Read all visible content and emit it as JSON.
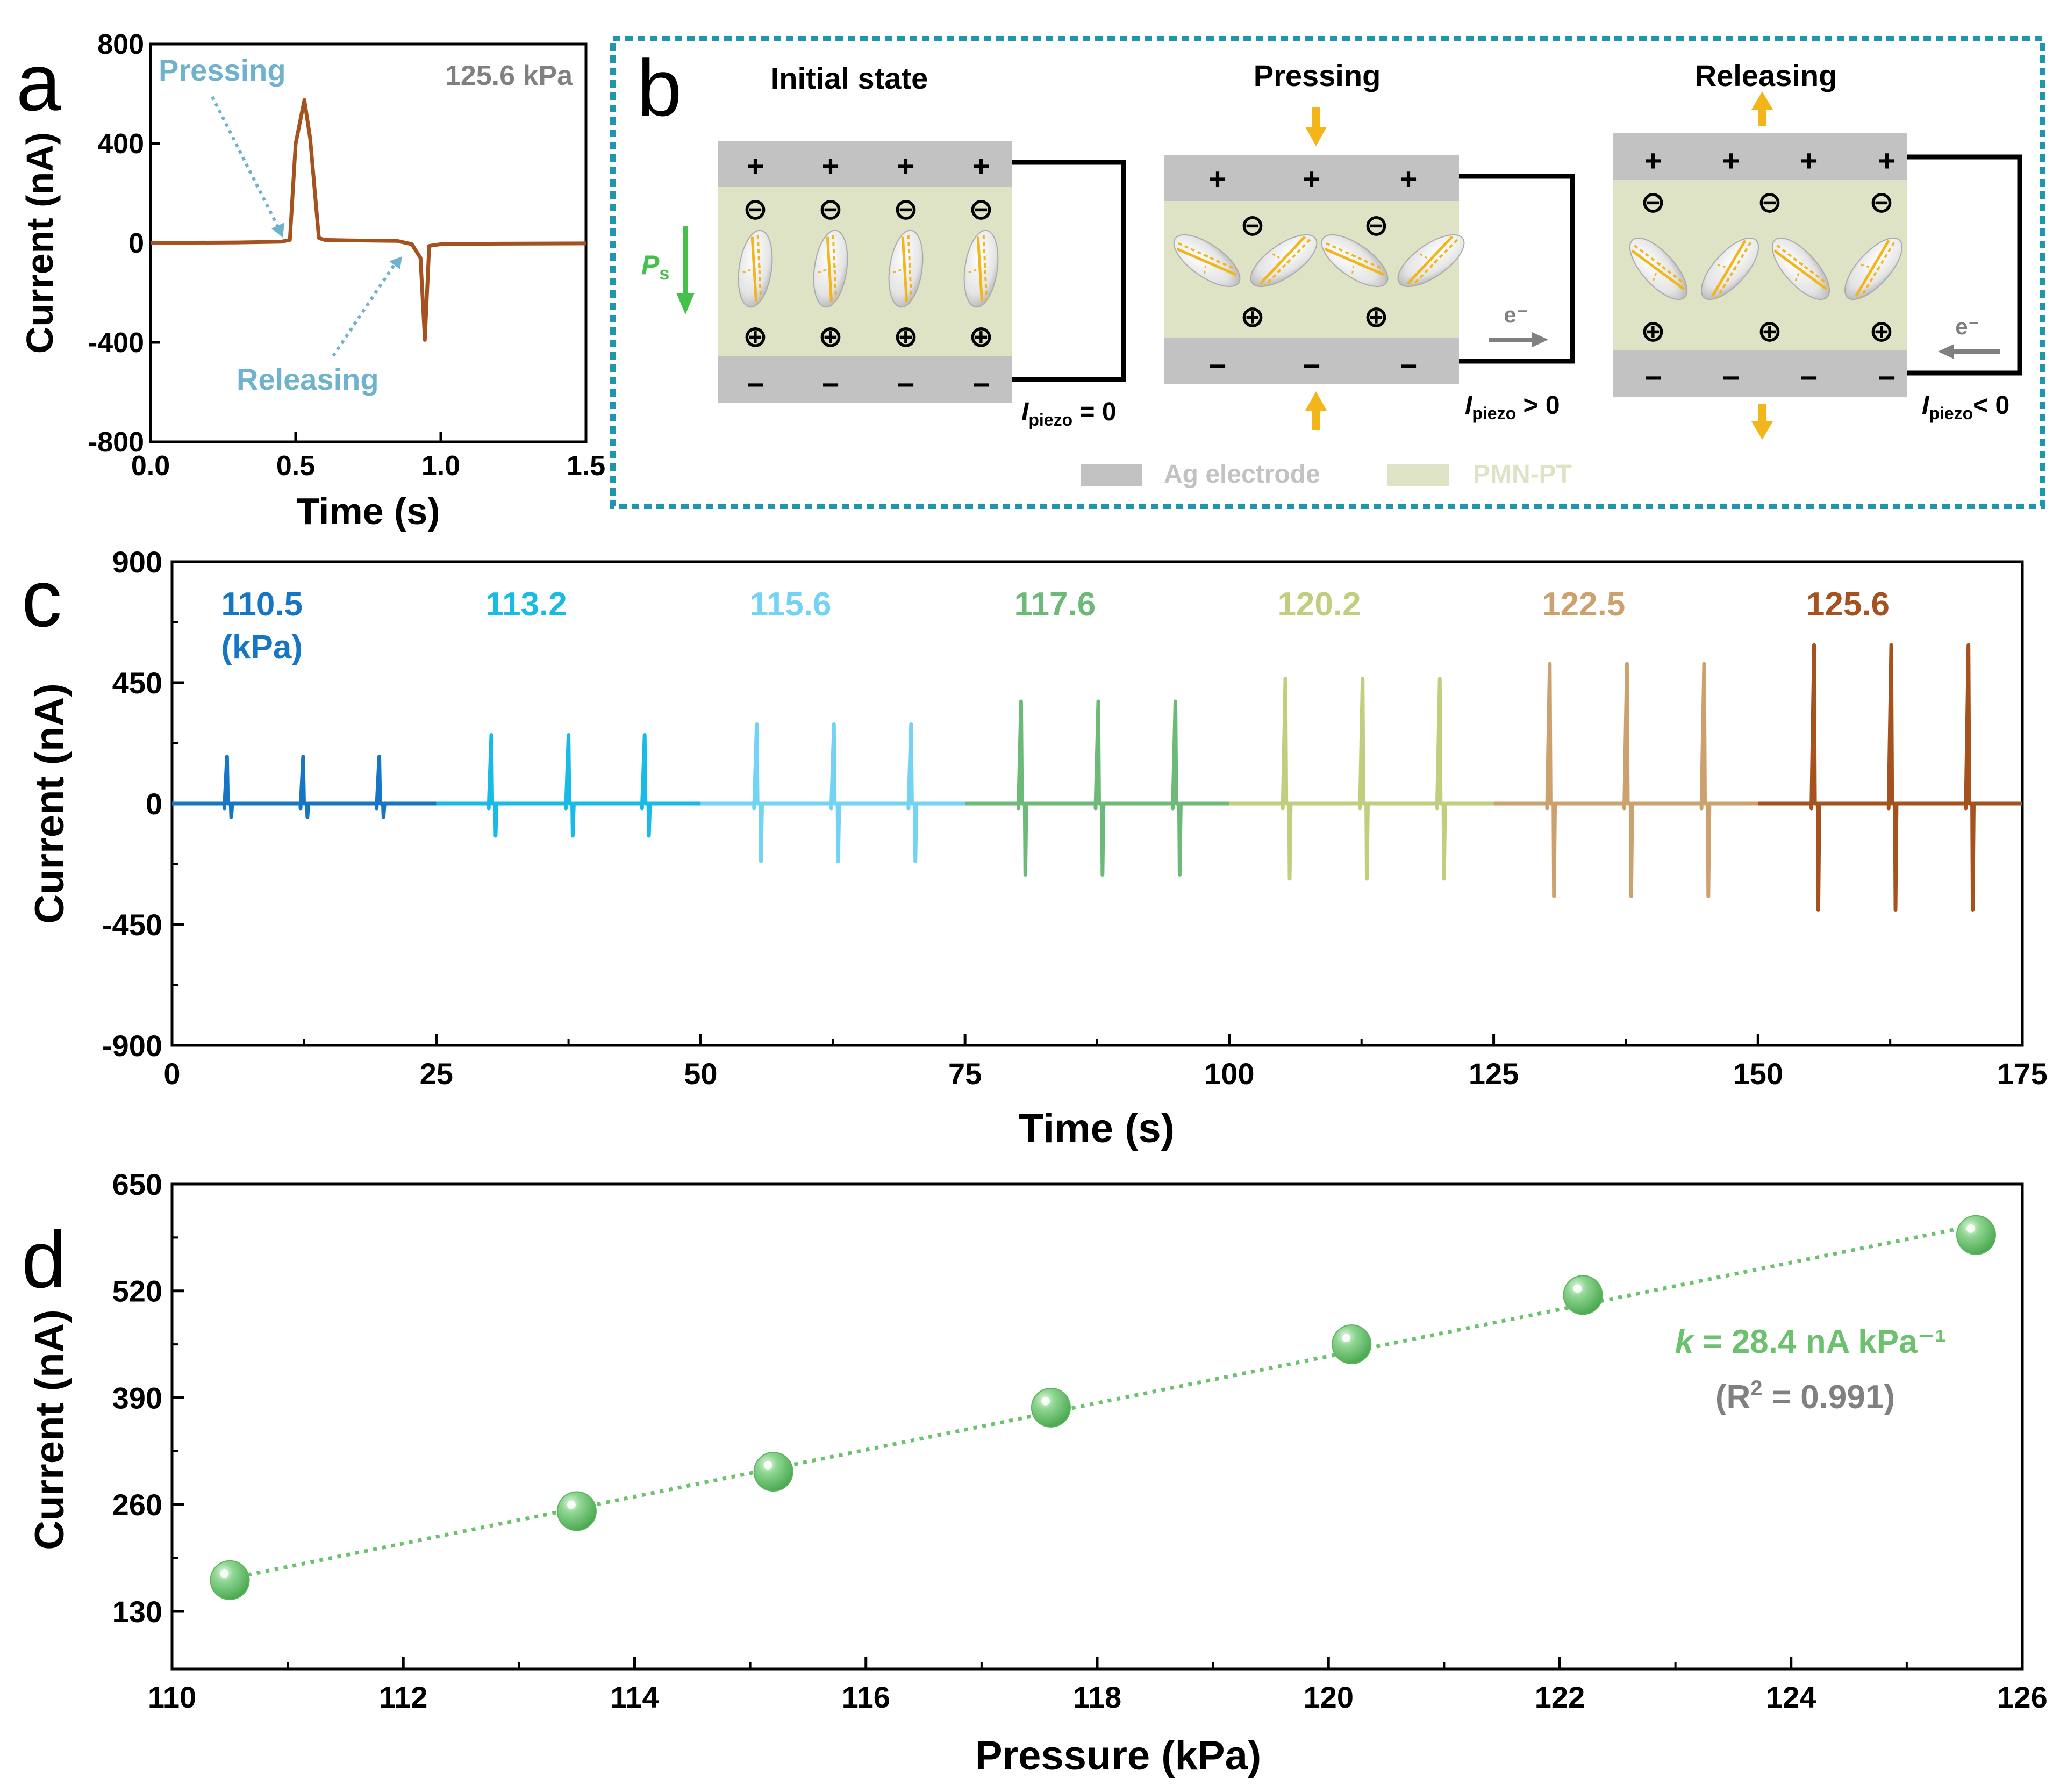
{
  "colors": {
    "axis": "#000000",
    "brown": "#a6521e",
    "annotation": "#6fb2cc",
    "label_gray": "#808080",
    "box_border": "#1f95b0",
    "electrode": "#c2c2c2",
    "pmn": "#dfe3c6",
    "dipole_line": "#f2b51a",
    "green_fit": "#6cc16e",
    "ps_green": "#45c04a"
  },
  "panels": {
    "a": "a",
    "b": "b",
    "c": "c",
    "d": "d"
  },
  "chart_data": [
    {
      "id": "a",
      "type": "line",
      "xlabel": "Time (s)",
      "ylabel": "Current (nA)",
      "xlim": [
        0,
        1.5
      ],
      "ylim": [
        -800,
        800
      ],
      "xticks": [
        0,
        0.5,
        1.0,
        1.5
      ],
      "xtick_labels": [
        "0.0",
        "0.5",
        "1.0",
        "1.5"
      ],
      "yticks": [
        800,
        400,
        0,
        -400,
        -800
      ],
      "ytick_labels": [
        "800",
        "400",
        "0",
        "-400",
        "-800"
      ],
      "label": "125.6 kPa",
      "series": [
        {
          "name": "125.6 kPa",
          "color": "#a6521e",
          "x": [
            0,
            0.3,
            0.45,
            0.48,
            0.5,
            0.53,
            0.55,
            0.58,
            0.6,
            0.7,
            0.85,
            0.9,
            0.93,
            0.945,
            0.96,
            1.0,
            1.2,
            1.5
          ],
          "y": [
            0,
            2,
            5,
            12,
            400,
            575,
            420,
            20,
            12,
            10,
            8,
            -5,
            -60,
            -390,
            -12,
            -5,
            -3,
            -2
          ]
        }
      ],
      "annotations": [
        {
          "text": "Pressing",
          "x": 0.48,
          "y": 15
        },
        {
          "text": "Releasing",
          "x": 0.88,
          "y": -60
        }
      ]
    },
    {
      "id": "c",
      "type": "line",
      "xlabel": "Time (s)",
      "ylabel": "Current (nA)",
      "xlim": [
        0,
        175
      ],
      "ylim": [
        -900,
        900
      ],
      "xticks": [
        0,
        25,
        50,
        75,
        100,
        125,
        150,
        175
      ],
      "yticks": [
        900,
        450,
        0,
        -450,
        -900
      ],
      "segments": [
        {
          "label": "110.5",
          "sublabel": "(kPa)",
          "color": "#1676c4",
          "t_start": 0,
          "t_end": 25,
          "press_times": [
            5.2,
            12.4,
            19.6
          ],
          "peak": 175,
          "valley": -50
        },
        {
          "label": "113.2",
          "color": "#17bbe6",
          "t_start": 25,
          "t_end": 50,
          "press_times": [
            30.2,
            37.5,
            44.7
          ],
          "peak": 255,
          "valley": -120
        },
        {
          "label": "115.6",
          "color": "#72d3f4",
          "t_start": 50,
          "t_end": 75,
          "press_times": [
            55.3,
            62.6,
            69.9
          ],
          "peak": 295,
          "valley": -215
        },
        {
          "label": "117.6",
          "color": "#6dba78",
          "t_start": 75,
          "t_end": 100,
          "press_times": [
            80.3,
            87.6,
            94.9
          ],
          "peak": 380,
          "valley": -265
        },
        {
          "label": "120.2",
          "color": "#bfcf7e",
          "t_start": 100,
          "t_end": 125,
          "press_times": [
            105.3,
            112.6,
            119.9
          ],
          "peak": 465,
          "valley": -280
        },
        {
          "label": "122.5",
          "color": "#cda16d",
          "t_start": 125,
          "t_end": 150,
          "press_times": [
            130.3,
            137.6,
            144.9
          ],
          "peak": 520,
          "valley": -345
        },
        {
          "label": "125.6",
          "color": "#a6521e",
          "t_start": 150,
          "t_end": 175,
          "press_times": [
            155.3,
            162.6,
            169.9
          ],
          "peak": 590,
          "valley": -395
        }
      ]
    },
    {
      "id": "d",
      "type": "scatter",
      "xlabel": "Pressure (kPa)",
      "ylabel": "Current (nA)",
      "xlim": [
        110,
        126
      ],
      "ylim": [
        60,
        650
      ],
      "xticks": [
        110,
        112,
        114,
        116,
        118,
        120,
        122,
        124,
        126
      ],
      "yticks": [
        130,
        260,
        390,
        520,
        650
      ],
      "x": [
        110.5,
        113.5,
        115.2,
        117.6,
        120.2,
        122.2,
        125.6
      ],
      "y": [
        168,
        252,
        300,
        378,
        455,
        515,
        588
      ],
      "fit": {
        "slope": 28.4,
        "x": [
          110.5,
          125.6
        ],
        "y": [
          170,
          600
        ]
      },
      "annotation": {
        "k_symbol": "k",
        "k_value": " = 28.4 nA kPa⁻¹",
        "r2_open": "(R",
        "r2_exp": "2",
        "r2_close": " = 0.991)"
      }
    }
  ],
  "diagram_b": {
    "states": {
      "initial": {
        "title": "Initial state",
        "current_sym": "I",
        "current_sub": "piezo",
        "current_rel": " = 0"
      },
      "pressing": {
        "title": "Pressing",
        "current_sym": "I",
        "current_sub": "piezo",
        "current_rel": " > 0",
        "electron": "e⁻"
      },
      "releasing": {
        "title": "Releasing",
        "current_sym": "I",
        "current_sub": "piezo",
        "current_rel": "< 0",
        "electron": "e⁻"
      }
    },
    "ps_label": "P",
    "ps_sub": "s",
    "signs": {
      "plus": "+",
      "minus": "−",
      "circled_minus": "⊖",
      "circled_plus": "⊕"
    },
    "legend": {
      "electrode": "Ag electrode",
      "pmn": "PMN-PT"
    }
  }
}
